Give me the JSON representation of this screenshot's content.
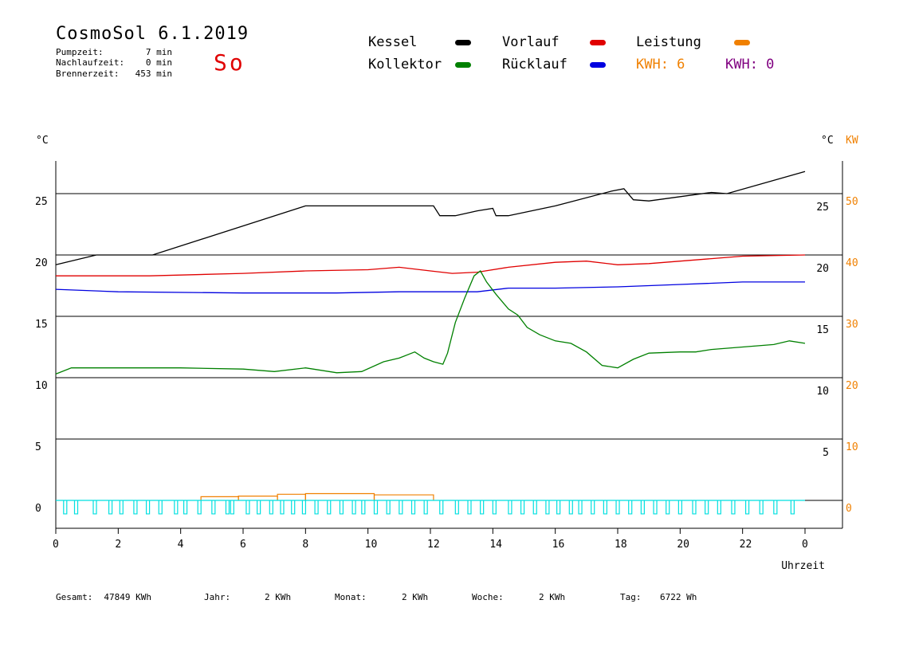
{
  "header": {
    "title": "CosmoSol 6.1.2019",
    "day": "So",
    "stats": [
      {
        "label": "Pumpzeit:",
        "value": "7 min"
      },
      {
        "label": "Nachlaufzeit:",
        "value": "0 min"
      },
      {
        "label": "Brennerzeit:",
        "value": "453 min"
      }
    ]
  },
  "legend": {
    "kessel": {
      "label": "Kessel",
      "color": "#000000"
    },
    "kollektor": {
      "label": "Kollektor",
      "color": "#008000"
    },
    "vorlauf": {
      "label": "Vorlauf",
      "color": "#e00000"
    },
    "ruecklauf": {
      "label": "Rücklauf",
      "color": "#0000e0"
    },
    "leistung": {
      "label": "Leistung",
      "color": "#f08000"
    },
    "kwh1": "KWH: 6",
    "kwh1_color": "#f08000",
    "kwh2": "KWH: 0",
    "kwh2_color": "#800080"
  },
  "footer": [
    {
      "label": "Gesamt:",
      "value": "47849 KWh"
    },
    {
      "label": "Jahr:",
      "value": "2 KWh"
    },
    {
      "label": "Monat:",
      "value": "2 KWh"
    },
    {
      "label": "Woche:",
      "value": "2 KWh"
    },
    {
      "label": "Tag:",
      "value": "6722 Wh"
    }
  ],
  "chart_data": {
    "type": "line",
    "xlabel": "Uhrzeit",
    "y_left_unit": "°C",
    "y_right_unit": "°C",
    "y_right2_unit": "KW",
    "xlim": [
      0,
      24
    ],
    "x_ticks": [
      "0",
      "2",
      "4",
      "6",
      "8",
      "10",
      "12",
      "14",
      "16",
      "18",
      "20",
      "22",
      "0"
    ],
    "y_left_ticks": [
      "0",
      "5",
      "10",
      "15",
      "20",
      "25"
    ],
    "y_right_ticks": [
      "5",
      "10",
      "15",
      "20",
      "25"
    ],
    "y_kw_ticks": [
      "0",
      "10",
      "20",
      "30",
      "40",
      "50"
    ],
    "ylim": [
      -2,
      27.5
    ],
    "grid_y": [
      0,
      5,
      10,
      15,
      20,
      25
    ],
    "series": [
      {
        "name": "Kessel",
        "color": "#000000",
        "points": [
          [
            0,
            19.2
          ],
          [
            1.3,
            20
          ],
          [
            3.1,
            20
          ],
          [
            8.0,
            24.0
          ],
          [
            12.1,
            24.0
          ],
          [
            12.3,
            23.2
          ],
          [
            12.8,
            23.2
          ],
          [
            13.5,
            23.6
          ],
          [
            14.0,
            23.8
          ],
          [
            14.1,
            23.2
          ],
          [
            14.5,
            23.2
          ],
          [
            16.0,
            24.0
          ],
          [
            17.8,
            25.2
          ],
          [
            18.2,
            25.4
          ],
          [
            18.5,
            24.5
          ],
          [
            19.0,
            24.4
          ],
          [
            21.0,
            25.1
          ],
          [
            21.5,
            25.0
          ],
          [
            24.0,
            26.8
          ]
        ]
      },
      {
        "name": "Vorlauf",
        "color": "#e00000",
        "points": [
          [
            0,
            18.3
          ],
          [
            3.0,
            18.3
          ],
          [
            6.0,
            18.5
          ],
          [
            8.0,
            18.7
          ],
          [
            10.0,
            18.8
          ],
          [
            11.0,
            19.0
          ],
          [
            12.0,
            18.7
          ],
          [
            12.7,
            18.5
          ],
          [
            13.5,
            18.6
          ],
          [
            14.5,
            19.0
          ],
          [
            16.0,
            19.4
          ],
          [
            17.0,
            19.5
          ],
          [
            18.0,
            19.2
          ],
          [
            19.0,
            19.3
          ],
          [
            21.0,
            19.7
          ],
          [
            22.0,
            19.9
          ],
          [
            24.0,
            20.0
          ]
        ]
      },
      {
        "name": "Rücklauf",
        "color": "#0000e0",
        "points": [
          [
            0,
            17.2
          ],
          [
            2.0,
            17.0
          ],
          [
            6.0,
            16.9
          ],
          [
            9.0,
            16.9
          ],
          [
            11.0,
            17.0
          ],
          [
            12.5,
            17.0
          ],
          [
            13.5,
            17.0
          ],
          [
            14.5,
            17.3
          ],
          [
            16.0,
            17.3
          ],
          [
            18.0,
            17.4
          ],
          [
            20.0,
            17.6
          ],
          [
            22.0,
            17.8
          ],
          [
            24.0,
            17.8
          ]
        ]
      },
      {
        "name": "Kollektor",
        "color": "#008000",
        "points": [
          [
            0,
            10.3
          ],
          [
            0.5,
            10.8
          ],
          [
            2.0,
            10.8
          ],
          [
            4.0,
            10.8
          ],
          [
            6.0,
            10.7
          ],
          [
            7.0,
            10.5
          ],
          [
            8.0,
            10.8
          ],
          [
            9.0,
            10.4
          ],
          [
            9.8,
            10.5
          ],
          [
            10.5,
            11.3
          ],
          [
            11.0,
            11.6
          ],
          [
            11.5,
            12.1
          ],
          [
            11.8,
            11.6
          ],
          [
            12.1,
            11.3
          ],
          [
            12.4,
            11.1
          ],
          [
            12.55,
            12.0
          ],
          [
            12.8,
            14.5
          ],
          [
            13.1,
            16.5
          ],
          [
            13.4,
            18.3
          ],
          [
            13.6,
            18.7
          ],
          [
            13.8,
            17.8
          ],
          [
            14.1,
            16.8
          ],
          [
            14.5,
            15.6
          ],
          [
            14.8,
            15.1
          ],
          [
            15.1,
            14.1
          ],
          [
            15.5,
            13.5
          ],
          [
            16.0,
            13.0
          ],
          [
            16.5,
            12.8
          ],
          [
            17.0,
            12.1
          ],
          [
            17.5,
            11.0
          ],
          [
            18.0,
            10.8
          ],
          [
            18.5,
            11.5
          ],
          [
            19.0,
            12.0
          ],
          [
            20.0,
            12.1
          ],
          [
            20.5,
            12.1
          ],
          [
            21.0,
            12.3
          ],
          [
            22.0,
            12.5
          ],
          [
            23.0,
            12.7
          ],
          [
            23.5,
            13.0
          ],
          [
            24.0,
            12.8
          ]
        ]
      }
    ],
    "leistung": {
      "name": "Leistung",
      "color": "#f08000",
      "segments": [
        [
          4.65,
          5.85,
          0.3
        ],
        [
          5.85,
          7.1,
          0.35
        ],
        [
          7.1,
          8.0,
          0.5
        ],
        [
          8.0,
          10.2,
          0.55
        ],
        [
          10.2,
          12.1,
          0.45
        ]
      ]
    },
    "pump": {
      "color": "#00e0e0",
      "y": 0,
      "height": -1.1,
      "pulses": [
        0.25,
        0.6,
        1.2,
        1.7,
        2.05,
        2.5,
        2.9,
        3.3,
        3.8,
        4.1,
        4.55,
        5.0,
        5.45,
        5.6,
        6.1,
        6.45,
        6.85,
        7.2,
        7.55,
        7.9,
        8.3,
        8.7,
        9.1,
        9.5,
        9.8,
        10.2,
        10.6,
        11.0,
        11.4,
        11.8,
        12.3,
        12.8,
        13.2,
        13.6,
        14.0,
        14.5,
        14.9,
        15.3,
        15.7,
        16.05,
        16.45,
        16.75,
        17.15,
        17.55,
        17.95,
        18.35,
        18.75,
        19.15,
        19.55,
        19.95,
        20.4,
        20.8,
        21.2,
        21.65,
        22.1,
        22.55,
        23.0,
        23.55
      ]
    }
  }
}
